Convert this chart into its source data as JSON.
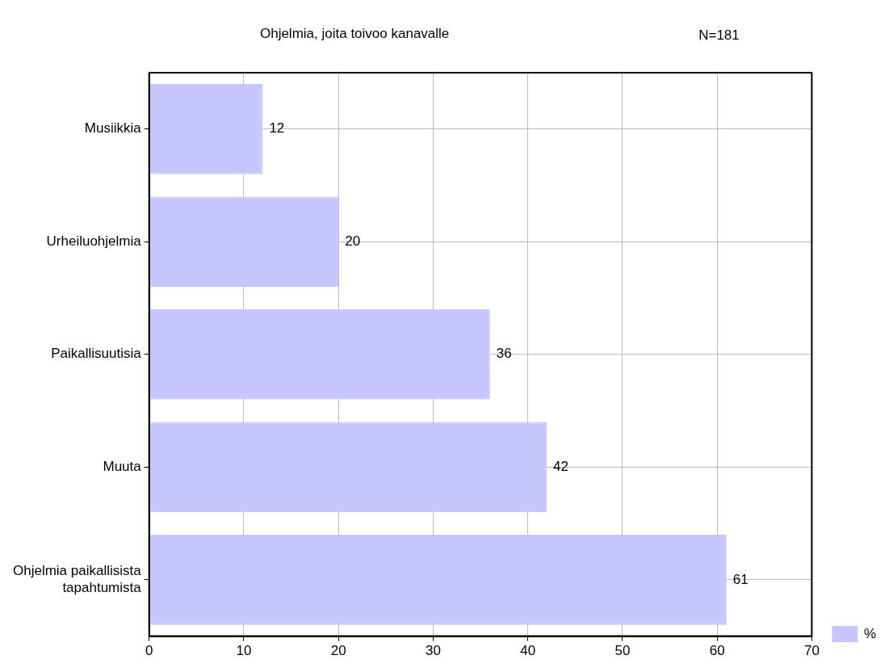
{
  "chart_data": {
    "type": "bar",
    "orientation": "horizontal",
    "title": "Ohjelmia, joita toivoo kanavalle",
    "annotations": [
      "N=181"
    ],
    "categories": [
      "Musiikkia",
      "Urheiluohjelmia",
      "Paikallisuutisia",
      "Muuta",
      "Ohjelmia paikallisista tapahtumista"
    ],
    "series": [
      {
        "name": "%",
        "color": "#c7c7ff",
        "values": [
          12,
          20,
          36,
          42,
          61
        ]
      }
    ],
    "xlim": [
      0,
      70
    ],
    "xticks": [
      0,
      10,
      20,
      30,
      40,
      50,
      60,
      70
    ],
    "grid": true,
    "legend": "bottom right",
    "data_labels": true
  }
}
